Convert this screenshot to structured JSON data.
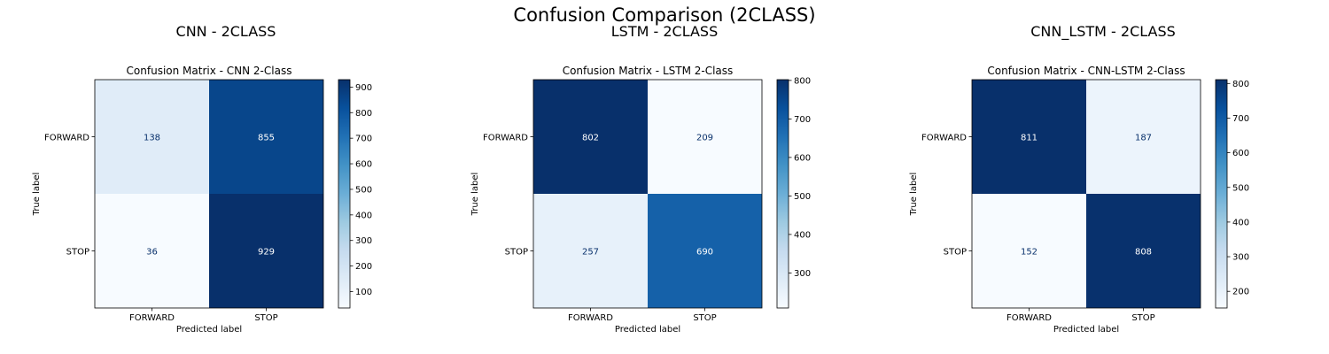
{
  "suptitle": "Confusion Comparison (2CLASS)",
  "colormap": "Blues",
  "chart_data": [
    {
      "type": "heatmap",
      "panel_title": "CNN - 2CLASS",
      "title": "Confusion Matrix - CNN 2-Class",
      "xlabel": "Predicted label",
      "ylabel": "True label",
      "x_categories": [
        "FORWARD",
        "STOP"
      ],
      "y_categories": [
        "FORWARD",
        "STOP"
      ],
      "matrix": [
        [
          138,
          855
        ],
        [
          36,
          929
        ]
      ],
      "colorbar": {
        "vmin": 36,
        "vmax": 929,
        "ticks": [
          100,
          200,
          300,
          400,
          500,
          600,
          700,
          800,
          900
        ]
      }
    },
    {
      "type": "heatmap",
      "panel_title": "LSTM - 2CLASS",
      "title": "Confusion Matrix - LSTM 2-Class",
      "xlabel": "Predicted label",
      "ylabel": "True label",
      "x_categories": [
        "FORWARD",
        "STOP"
      ],
      "y_categories": [
        "FORWARD",
        "STOP"
      ],
      "matrix": [
        [
          802,
          209
        ],
        [
          257,
          690
        ]
      ],
      "colorbar": {
        "vmin": 209,
        "vmax": 802,
        "ticks": [
          300,
          400,
          500,
          600,
          700,
          800
        ]
      }
    },
    {
      "type": "heatmap",
      "panel_title": "CNN_LSTM - 2CLASS",
      "title": "Confusion Matrix - CNN-LSTM 2-Class",
      "xlabel": "Predicted label",
      "ylabel": "True label",
      "x_categories": [
        "FORWARD",
        "STOP"
      ],
      "y_categories": [
        "FORWARD",
        "STOP"
      ],
      "matrix": [
        [
          811,
          187
        ],
        [
          152,
          808
        ]
      ],
      "colorbar": {
        "vmin": 152,
        "vmax": 811,
        "ticks": [
          200,
          300,
          400,
          500,
          600,
          700,
          800
        ]
      }
    }
  ]
}
